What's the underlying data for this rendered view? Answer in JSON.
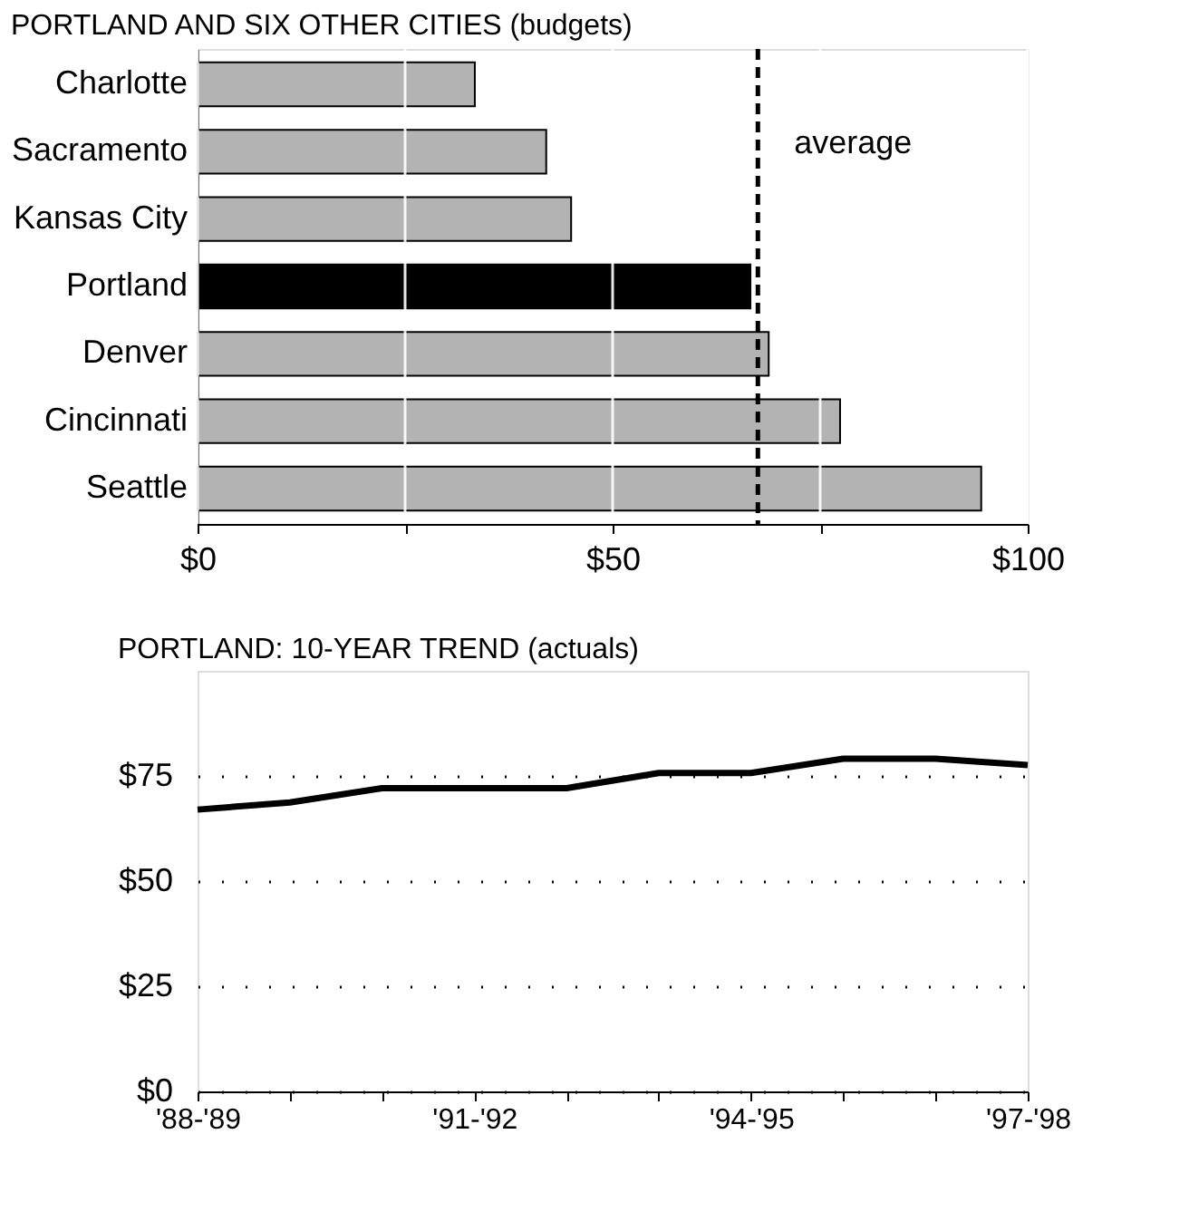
{
  "chart_data": [
    {
      "type": "bar",
      "orientation": "horizontal",
      "title": "PORTLAND AND SIX OTHER CITIES (budgets)",
      "categories": [
        "Charlotte",
        "Sacramento",
        "Kansas City",
        "Portland",
        "Denver",
        "Cincinnati",
        "Seattle"
      ],
      "values": [
        33.4,
        42,
        45,
        66.6,
        68.8,
        77.4,
        94.4
      ],
      "colors": [
        "#b3b3b3",
        "#b3b3b3",
        "#b3b3b3",
        "#000000",
        "#b3b3b3",
        "#b3b3b3",
        "#b3b3b3"
      ],
      "xlim": [
        0,
        100
      ],
      "xticks": [
        {
          "value": 0,
          "label": "$0"
        },
        {
          "value": 25,
          "label": null
        },
        {
          "value": 50,
          "label": "$50"
        },
        {
          "value": 75,
          "label": null
        },
        {
          "value": 100,
          "label": "$100"
        }
      ],
      "grid": "x",
      "ref_lines": [
        {
          "axis": "x",
          "value": 67.5,
          "label": "average",
          "color": "#000000",
          "line_style": "dashed"
        }
      ]
    },
    {
      "type": "line",
      "title": "PORTLAND: 10-YEAR TREND (actuals)",
      "categories": [
        "'88-'89",
        null,
        null,
        "'91-'92",
        null,
        null,
        "'94-'95",
        null,
        null,
        "'97-'98"
      ],
      "series": [
        {
          "color": "#000000",
          "values": [
            67,
            68.7,
            72.1,
            72.1,
            72.1,
            75.7,
            75.7,
            79.1,
            79.1,
            77.6
          ]
        }
      ],
      "ylim": [
        0,
        100
      ],
      "yticks": [
        {
          "value": 0,
          "label": "$0"
        },
        {
          "value": 25,
          "label": "$25"
        },
        {
          "value": 50,
          "label": "$50"
        },
        {
          "value": 75,
          "label": "$75"
        }
      ],
      "grid": "y",
      "line_style": "solid",
      "marker": "none"
    }
  ]
}
